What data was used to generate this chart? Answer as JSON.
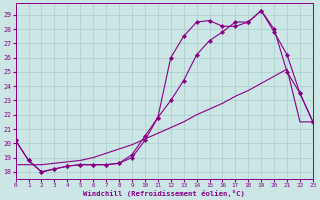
{
  "xlabel": "Windchill (Refroidissement éolien,°C)",
  "bg_color": "#cce5e5",
  "grid_color": "#aacccc",
  "line_color": "#880088",
  "xlim": [
    0,
    23
  ],
  "ylim": [
    17.5,
    29.8
  ],
  "yticks": [
    18,
    19,
    20,
    21,
    22,
    23,
    24,
    25,
    26,
    27,
    28,
    29
  ],
  "xticks": [
    0,
    1,
    2,
    3,
    4,
    5,
    6,
    7,
    8,
    9,
    10,
    11,
    12,
    13,
    14,
    15,
    16,
    17,
    18,
    19,
    20,
    21,
    22,
    23
  ],
  "curve1_x": [
    0,
    1,
    2,
    3,
    4,
    5,
    6,
    7,
    8,
    9,
    10,
    11,
    12,
    13,
    14,
    15,
    16,
    17,
    18,
    19,
    20,
    21,
    22,
    23
  ],
  "curve1_y": [
    20.2,
    18.8,
    18.0,
    18.2,
    18.4,
    18.5,
    18.5,
    18.5,
    18.6,
    19.2,
    20.5,
    21.8,
    23.0,
    24.4,
    26.2,
    27.2,
    27.8,
    28.5,
    28.5,
    29.3,
    28.0,
    25.0,
    23.5,
    21.5
  ],
  "curve1_marker": true,
  "curve2_x": [
    0,
    1,
    2,
    3,
    4,
    5,
    6,
    7,
    8,
    9,
    10,
    11,
    12,
    13,
    14,
    15,
    16,
    17,
    18,
    19,
    20,
    21,
    22,
    23
  ],
  "curve2_y": [
    20.2,
    18.8,
    18.0,
    18.2,
    18.4,
    18.5,
    18.5,
    18.5,
    18.6,
    19.0,
    20.2,
    21.8,
    26.0,
    27.5,
    28.5,
    28.6,
    28.2,
    28.2,
    28.5,
    29.3,
    27.8,
    26.2,
    23.5,
    21.5
  ],
  "curve2_marker": true,
  "curve3_x": [
    0,
    1,
    2,
    3,
    4,
    5,
    6,
    7,
    8,
    9,
    10,
    11,
    12,
    13,
    14,
    15,
    16,
    17,
    18,
    19,
    20,
    21,
    22,
    23
  ],
  "curve3_y": [
    18.5,
    18.5,
    18.5,
    18.6,
    18.7,
    18.8,
    19.0,
    19.3,
    19.6,
    19.9,
    20.3,
    20.7,
    21.1,
    21.5,
    22.0,
    22.4,
    22.8,
    23.3,
    23.7,
    24.2,
    24.7,
    25.2,
    21.5,
    21.5
  ],
  "curve3_marker": false,
  "figwidth": 3.2,
  "figheight": 2.0,
  "dpi": 100
}
